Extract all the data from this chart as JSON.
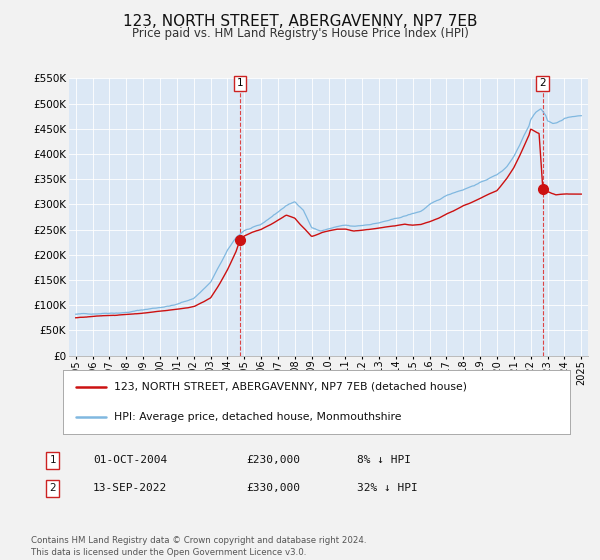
{
  "title": "123, NORTH STREET, ABERGAVENNY, NP7 7EB",
  "subtitle": "Price paid vs. HM Land Registry's House Price Index (HPI)",
  "ylim": [
    0,
    550000
  ],
  "xlim_start": 1994.6,
  "xlim_end": 2025.4,
  "ytick_labels": [
    "£0",
    "£50K",
    "£100K",
    "£150K",
    "£200K",
    "£250K",
    "£300K",
    "£350K",
    "£400K",
    "£450K",
    "£500K",
    "£550K"
  ],
  "ytick_values": [
    0,
    50000,
    100000,
    150000,
    200000,
    250000,
    300000,
    350000,
    400000,
    450000,
    500000,
    550000
  ],
  "xtick_years": [
    1995,
    1996,
    1997,
    1998,
    1999,
    2000,
    2001,
    2002,
    2003,
    2004,
    2005,
    2006,
    2007,
    2008,
    2009,
    2010,
    2011,
    2012,
    2013,
    2014,
    2015,
    2016,
    2017,
    2018,
    2019,
    2020,
    2021,
    2022,
    2023,
    2024,
    2025
  ],
  "background_color": "#f2f2f2",
  "plot_bg_color": "#dce8f5",
  "grid_color": "#ffffff",
  "red_line_color": "#cc1111",
  "blue_line_color": "#80b8e0",
  "marker1_date": 2004.75,
  "marker1_price": 230000,
  "marker1_label": "1",
  "marker2_date": 2022.71,
  "marker2_price": 330000,
  "marker2_label": "2",
  "vline1_x": 2004.75,
  "vline2_x": 2022.71,
  "legend_label_red": "123, NORTH STREET, ABERGAVENNY, NP7 7EB (detached house)",
  "legend_label_blue": "HPI: Average price, detached house, Monmouthshire",
  "table_1_date": "01-OCT-2004",
  "table_1_price": "£230,000",
  "table_1_hpi": "8% ↓ HPI",
  "table_2_date": "13-SEP-2022",
  "table_2_price": "£330,000",
  "table_2_hpi": "32% ↓ HPI",
  "footer": "Contains HM Land Registry data © Crown copyright and database right 2024.\nThis data is licensed under the Open Government Licence v3.0."
}
